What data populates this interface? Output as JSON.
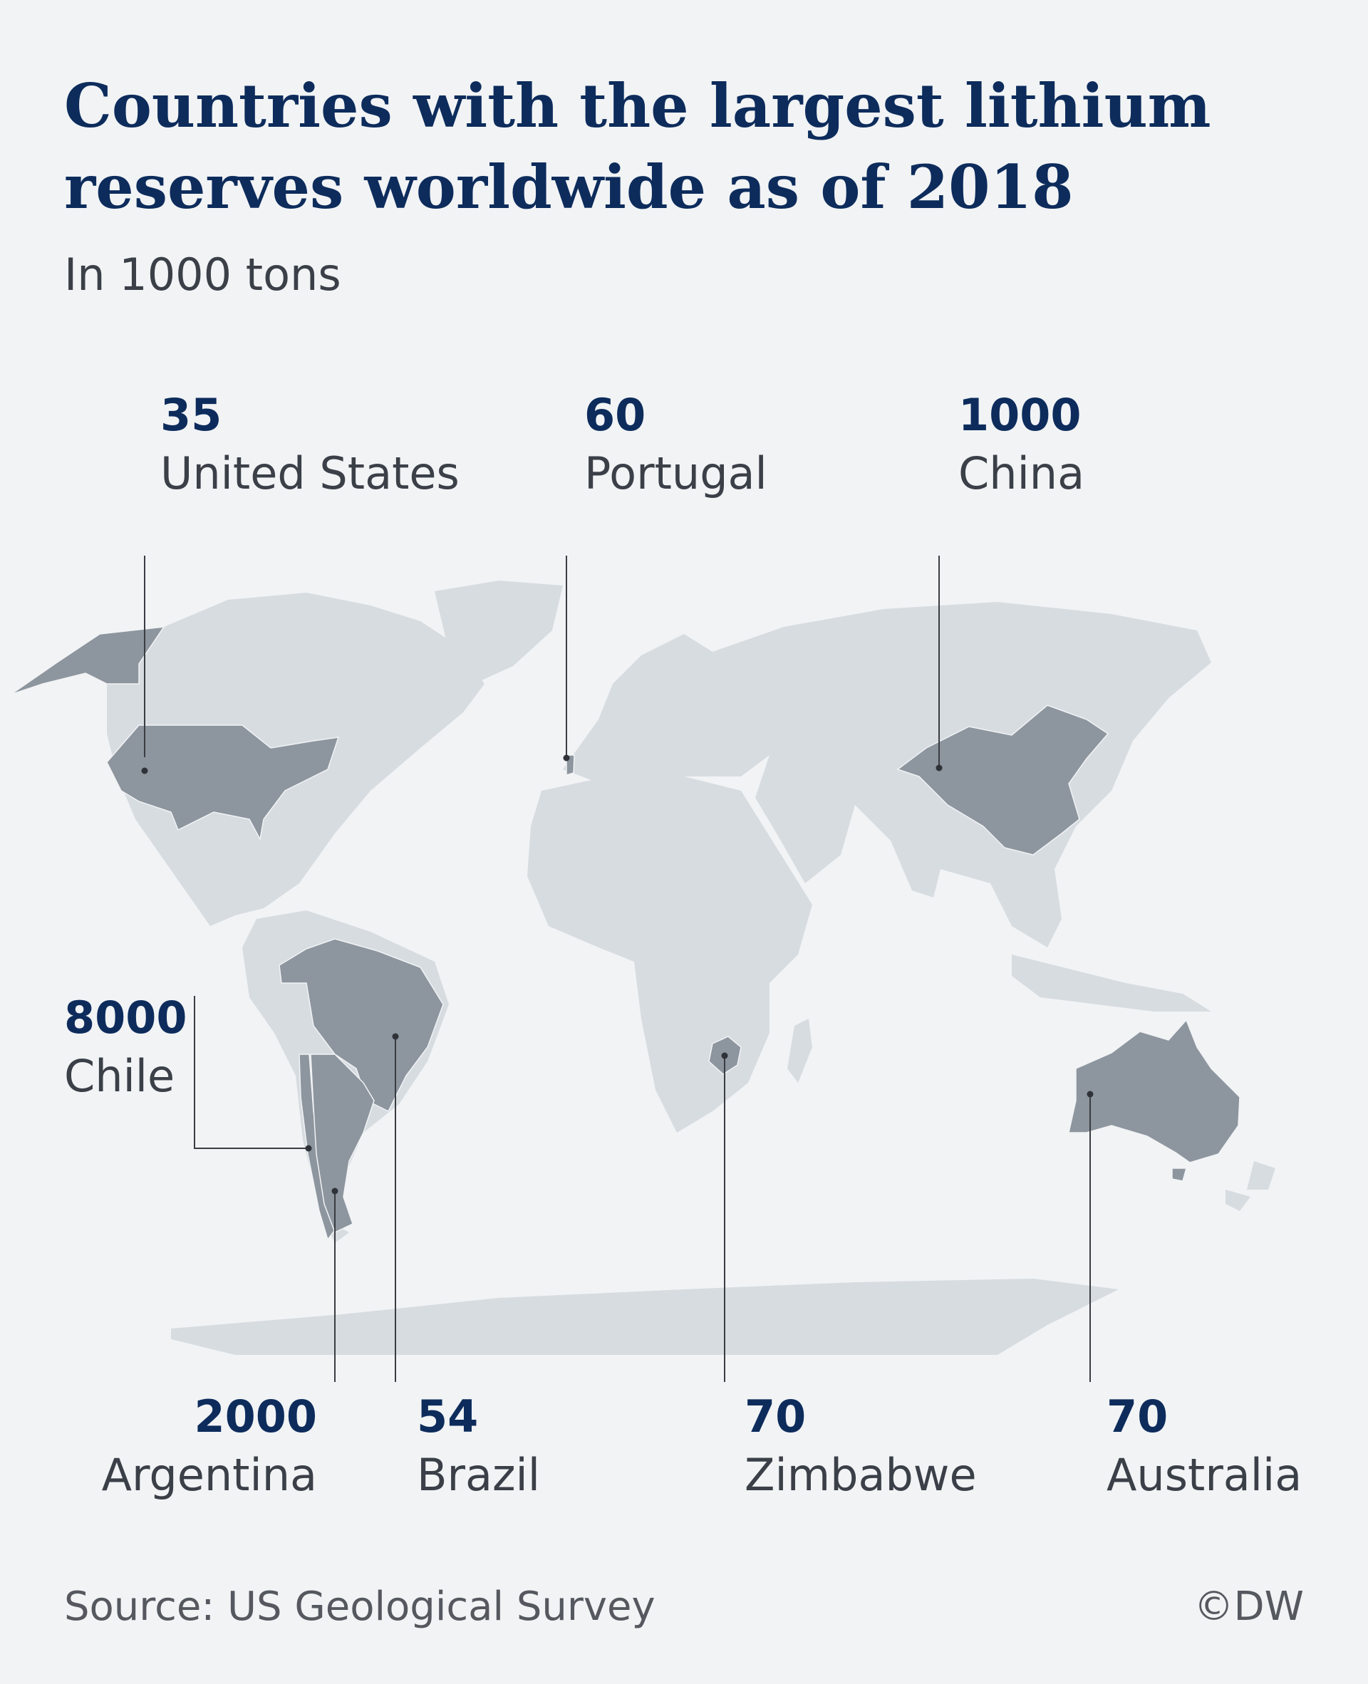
{
  "header": {
    "title": "Countries with the largest lithium\nreserves worldwide as of 2018",
    "subtitle": "In 1000 tons"
  },
  "countries": {
    "us": {
      "value": "35",
      "name": "United States"
    },
    "portugal": {
      "value": "60",
      "name": "Portugal"
    },
    "china": {
      "value": "1000",
      "name": "China"
    },
    "chile": {
      "value": "8000",
      "name": "Chile"
    },
    "argentina": {
      "value": "2000",
      "name": "Argentina"
    },
    "brazil": {
      "value": "54",
      "name": "Brazil"
    },
    "zimbabwe": {
      "value": "70",
      "name": "Zimbabwe"
    },
    "australia": {
      "value": "70",
      "name": "Australia"
    }
  },
  "footer": {
    "source": "Source: US Geological Survey",
    "copyright": "©DW"
  },
  "colors": {
    "background": "#f1f3f5",
    "land": "#d7dce1",
    "highlighted_land": "#8d959e",
    "title": "#0d2c5c",
    "leader_line": "#3a3d42"
  }
}
